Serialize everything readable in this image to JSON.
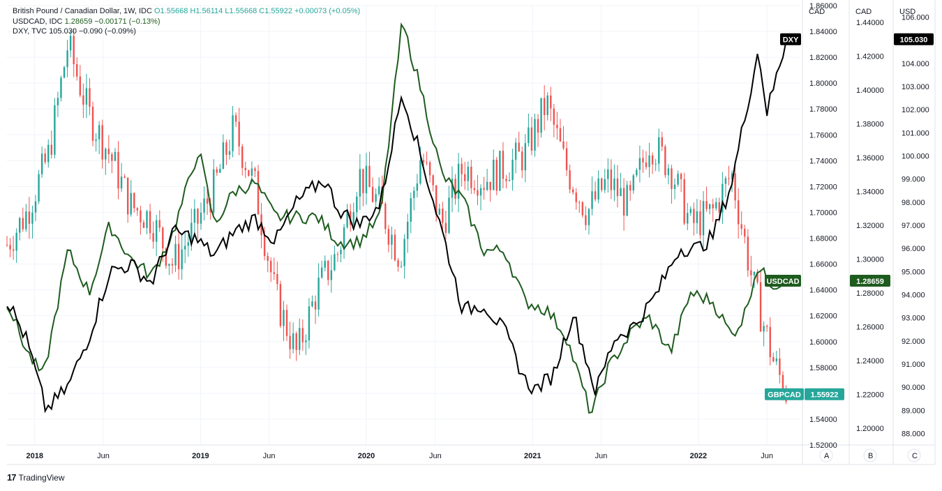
{
  "legend": {
    "main_symbol": "British Pound / Canadian Dollar, 1W, IDC",
    "main_values": "O1.55668  H1.56114  L1.55668  C1.55922  +0.00073 (+0.05%)",
    "usdcad_symbol": "USDCAD, IDC",
    "usdcad_values": "1.28659  −0.00171 (−0.13%)",
    "dxy_symbol": "DXY, TVC",
    "dxy_values": "105.030  −0.090 (−0.09%)"
  },
  "footer": {
    "logo": "17",
    "brand": "TradingView"
  },
  "colors": {
    "up": "#26a69a",
    "down": "#ef5350",
    "usdcad": "#1e5b1e",
    "dxy": "#000000",
    "grid": "#f0f3fa"
  },
  "chart_data": {
    "type": "line",
    "x_labels": [
      "2018",
      "Jun",
      "2019",
      "Jun",
      "2020",
      "Jun",
      "2021",
      "Jun",
      "2022",
      "Jun"
    ],
    "x_range": [
      "2017-11-01",
      "2022-08-15"
    ],
    "axes": [
      {
        "header": "CAD",
        "pane_label": "A",
        "range": [
          1.52,
          1.86
        ],
        "ticks": [
          "1.86000",
          "1.84000",
          "1.82000",
          "1.80000",
          "1.78000",
          "1.76000",
          "1.74000",
          "1.72000",
          "1.70000",
          "1.68000",
          "1.66000",
          "1.64000",
          "1.62000",
          "1.60000",
          "1.58000",
          "1.56000",
          "1.54000",
          "1.52000"
        ]
      },
      {
        "header": "CAD",
        "pane_label": "B",
        "range": [
          1.19,
          1.45
        ],
        "ticks": [
          "1.44000",
          "1.42000",
          "1.40000",
          "1.38000",
          "1.36000",
          "1.34000",
          "1.32000",
          "1.30000",
          "1.28000",
          "1.26000",
          "1.24000",
          "1.22000",
          "1.20000"
        ]
      },
      {
        "header": "USD",
        "pane_label": "C",
        "range": [
          87.5,
          106.5
        ],
        "ticks": [
          "106.000",
          "105.000",
          "104.000",
          "103.000",
          "102.000",
          "101.000",
          "100.000",
          "99.000",
          "98.000",
          "97.000",
          "96.000",
          "95.000",
          "94.000",
          "93.000",
          "92.000",
          "91.000",
          "90.000",
          "89.000",
          "88.000"
        ]
      }
    ],
    "series": [
      {
        "name": "GBPCAD",
        "style": "candles",
        "axis": 0,
        "last_label": "1.55922",
        "x": [
          "2017-11-01",
          "2017-12-15",
          "2018-02-01",
          "2018-03-15",
          "2018-05-01",
          "2018-06-15",
          "2018-08-01",
          "2018-09-15",
          "2018-11-01",
          "2018-12-15",
          "2019-02-01",
          "2019-03-15",
          "2019-05-01",
          "2019-06-15",
          "2019-08-01",
          "2019-09-15",
          "2019-11-01",
          "2019-12-15",
          "2020-02-01",
          "2020-03-15",
          "2020-05-01",
          "2020-06-15",
          "2020-08-01",
          "2020-09-15",
          "2020-11-01",
          "2020-12-15",
          "2021-02-01",
          "2021-03-15",
          "2021-05-01",
          "2021-06-15",
          "2021-08-01",
          "2021-09-15",
          "2021-11-01",
          "2021-12-15",
          "2022-02-01",
          "2022-03-15",
          "2022-05-01",
          "2022-06-15",
          "2022-07-15"
        ],
        "values": [
          1.675,
          1.7,
          1.745,
          1.83,
          1.775,
          1.745,
          1.705,
          1.695,
          1.66,
          1.685,
          1.72,
          1.765,
          1.72,
          1.635,
          1.59,
          1.64,
          1.67,
          1.73,
          1.705,
          1.665,
          1.745,
          1.69,
          1.735,
          1.725,
          1.735,
          1.745,
          1.785,
          1.735,
          1.7,
          1.725,
          1.705,
          1.755,
          1.735,
          1.69,
          1.7,
          1.73,
          1.645,
          1.585,
          1.559
        ]
      },
      {
        "name": "USDCAD",
        "style": "line",
        "axis": 1,
        "last_label": "1.28659",
        "x": [
          "2017-11-01",
          "2017-12-15",
          "2018-01-20",
          "2018-03-15",
          "2018-05-01",
          "2018-06-15",
          "2018-08-01",
          "2018-09-15",
          "2018-11-01",
          "2018-12-28",
          "2019-02-01",
          "2019-03-15",
          "2019-05-01",
          "2019-06-15",
          "2019-08-01",
          "2019-09-15",
          "2019-11-01",
          "2019-12-15",
          "2020-02-01",
          "2020-03-20",
          "2020-05-01",
          "2020-06-15",
          "2020-08-01",
          "2020-09-15",
          "2020-11-01",
          "2020-12-15",
          "2021-02-01",
          "2021-03-15",
          "2021-05-10",
          "2021-06-15",
          "2021-08-15",
          "2021-09-15",
          "2021-11-01",
          "2021-12-15",
          "2022-02-01",
          "2022-03-15",
          "2022-04-10",
          "2022-05-10",
          "2022-06-15",
          "2022-07-15"
        ],
        "values": [
          1.275,
          1.245,
          1.23,
          1.305,
          1.28,
          1.32,
          1.3,
          1.29,
          1.315,
          1.365,
          1.32,
          1.34,
          1.345,
          1.325,
          1.325,
          1.325,
          1.31,
          1.31,
          1.325,
          1.44,
          1.4,
          1.35,
          1.335,
          1.305,
          1.305,
          1.275,
          1.27,
          1.255,
          1.208,
          1.235,
          1.26,
          1.265,
          1.245,
          1.28,
          1.275,
          1.255,
          1.265,
          1.295,
          1.285,
          1.287
        ]
      },
      {
        "name": "DXY",
        "style": "line",
        "axis": 2,
        "last_label": "105.030",
        "x": [
          "2017-11-01",
          "2017-12-15",
          "2018-01-26",
          "2018-03-15",
          "2018-05-01",
          "2018-06-15",
          "2018-08-01",
          "2018-09-15",
          "2018-11-01",
          "2018-12-15",
          "2019-02-01",
          "2019-03-15",
          "2019-05-01",
          "2019-06-15",
          "2019-08-01",
          "2019-09-30",
          "2019-11-01",
          "2019-12-15",
          "2020-02-01",
          "2020-03-20",
          "2020-05-01",
          "2020-06-15",
          "2020-08-01",
          "2020-09-15",
          "2020-11-01",
          "2020-12-15",
          "2021-01-06",
          "2021-02-15",
          "2021-03-31",
          "2021-05-20",
          "2021-06-30",
          "2021-08-15",
          "2021-09-30",
          "2021-11-20",
          "2021-12-31",
          "2022-02-01",
          "2022-03-15",
          "2022-05-13",
          "2022-06-01",
          "2022-07-14"
        ],
        "values": [
          93.8,
          92.0,
          89.0,
          90.0,
          92.2,
          95.0,
          95.3,
          94.5,
          96.7,
          96.5,
          95.7,
          96.7,
          97.3,
          96.3,
          98.0,
          99.0,
          97.7,
          97.0,
          97.9,
          102.8,
          99.9,
          96.8,
          93.3,
          93.6,
          92.4,
          90.3,
          89.9,
          90.5,
          93.2,
          89.8,
          92.1,
          92.7,
          94.0,
          96.0,
          96.0,
          96.5,
          98.8,
          104.6,
          101.9,
          105.03
        ]
      }
    ]
  }
}
